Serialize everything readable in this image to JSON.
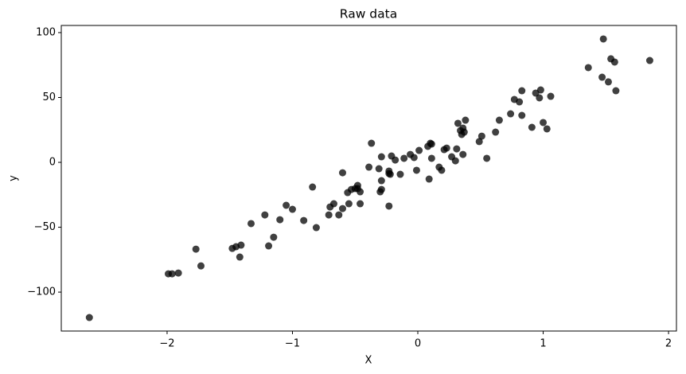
{
  "chart_data": {
    "type": "scatter",
    "title": "Raw data",
    "xlabel": "X",
    "ylabel": "y",
    "color": "#000000",
    "alpha": 0.75,
    "xlim": [
      -2.844,
      2.063
    ],
    "ylim": [
      -130,
      105.5
    ],
    "xticks": [
      {
        "value": -2,
        "label": "−2"
      },
      {
        "value": -1,
        "label": "−1"
      },
      0,
      1,
      2
    ],
    "yticks": [
      {
        "value": -100,
        "label": "−100"
      },
      {
        "value": -50,
        "label": "−50"
      },
      0,
      50,
      100
    ],
    "x": [
      -2.62,
      -1.99,
      -1.96,
      -1.91,
      -1.77,
      -1.73,
      -1.48,
      -1.45,
      -1.41,
      -1.42,
      -1.33,
      -1.22,
      -1.19,
      -1.15,
      -1.1,
      -1.05,
      -1.0,
      -0.91,
      -0.84,
      -0.81,
      -0.71,
      -0.7,
      -0.67,
      -0.63,
      -0.6,
      -0.6,
      -0.56,
      -0.55,
      -0.53,
      -0.5,
      -0.48,
      -0.48,
      -0.46,
      -0.46,
      -0.39,
      -0.37,
      -0.31,
      -0.3,
      -0.29,
      -0.29,
      -0.29,
      -0.23,
      -0.23,
      -0.23,
      -0.22,
      -0.21,
      -0.18,
      -0.14,
      -0.11,
      -0.06,
      -0.03,
      -0.01,
      0.01,
      0.08,
      0.1,
      0.11,
      0.09,
      0.11,
      0.17,
      0.19,
      0.21,
      0.23,
      0.27,
      0.3,
      0.31,
      0.32,
      0.34,
      0.35,
      0.36,
      0.37,
      0.36,
      0.38,
      0.49,
      0.51,
      0.55,
      0.62,
      0.65,
      0.74,
      0.77,
      0.81,
      0.83,
      0.83,
      0.91,
      0.94,
      0.97,
      0.98,
      1.0,
      1.03,
      1.06,
      1.36,
      1.47,
      1.48,
      1.52,
      1.54,
      1.57,
      1.58,
      1.85
    ],
    "values": [
      -119.6,
      -85.9,
      -85.9,
      -85.3,
      -66.9,
      -79.8,
      -66.3,
      -65.0,
      -63.8,
      -73.0,
      -47.2,
      -40.5,
      -64.4,
      -57.7,
      -44.2,
      -33.1,
      -36.2,
      -44.8,
      -19.0,
      -50.3,
      -40.5,
      -34.4,
      -31.9,
      -40.5,
      -35.6,
      -8.0,
      -23.3,
      -31.9,
      -20.9,
      -20.2,
      -20.2,
      -17.8,
      -31.9,
      -22.7,
      -3.7,
      14.7,
      -4.9,
      -22.7,
      -20.9,
      -14.1,
      4.3,
      -6.7,
      -33.7,
      -8.6,
      -9.2,
      4.9,
      1.8,
      -9.2,
      3.1,
      6.1,
      3.7,
      -6.1,
      9.2,
      12.3,
      14.7,
      14.1,
      -12.9,
      3.1,
      -3.7,
      -6.1,
      9.8,
      11.0,
      4.3,
      1.2,
      10.4,
      30.1,
      24.5,
      21.5,
      26.4,
      23.3,
      6.1,
      32.5,
      16.0,
      20.2,
      3.1,
      23.3,
      32.5,
      37.4,
      48.5,
      46.6,
      55.2,
      36.2,
      27.0,
      53.4,
      49.7,
      55.8,
      30.7,
      25.8,
      50.9,
      73.0,
      65.6,
      95.1,
      62.0,
      79.8,
      77.3,
      55.2,
      78.5
    ]
  }
}
